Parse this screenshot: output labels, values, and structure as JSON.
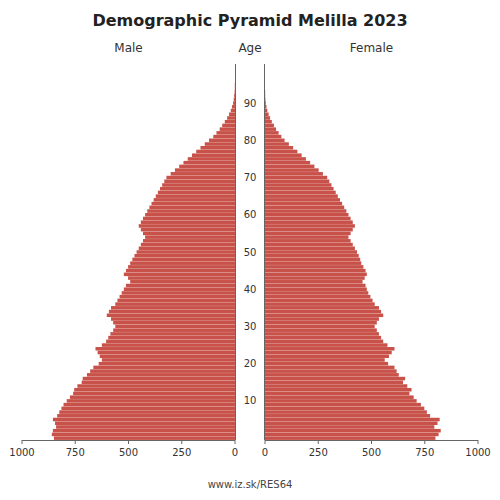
{
  "chart_data": {
    "type": "bar",
    "orientation": "horizontal",
    "title": "Demographic Pyramid Melilla 2023",
    "y_label": "Age",
    "footer": "www.iz.sk/RES64",
    "xlim": [
      0,
      1000
    ],
    "xticks": [
      0,
      250,
      500,
      750,
      1000
    ],
    "categories": [
      null,
      null,
      null,
      null,
      null,
      null,
      null,
      null,
      null,
      null,
      "10",
      null,
      null,
      null,
      null,
      null,
      null,
      null,
      null,
      null,
      "20",
      null,
      null,
      null,
      null,
      null,
      null,
      null,
      null,
      null,
      "30",
      null,
      null,
      null,
      null,
      null,
      null,
      null,
      null,
      null,
      "40",
      null,
      null,
      null,
      null,
      null,
      null,
      null,
      null,
      null,
      "50",
      null,
      null,
      null,
      null,
      null,
      null,
      null,
      null,
      null,
      "60",
      null,
      null,
      null,
      null,
      null,
      null,
      null,
      null,
      null,
      "70",
      null,
      null,
      null,
      null,
      null,
      null,
      null,
      null,
      null,
      "80",
      null,
      null,
      null,
      null,
      null,
      null,
      null,
      null,
      null,
      "90",
      null,
      null,
      null,
      null,
      null,
      null,
      null,
      null,
      null,
      null
    ],
    "series": [
      {
        "name": "Male",
        "color": "#C8524A",
        "values": [
          850,
          860,
          855,
          840,
          845,
          855,
          835,
          825,
          815,
          805,
          790,
          775,
          760,
          755,
          740,
          720,
          715,
          695,
          680,
          665,
          640,
          625,
          635,
          645,
          655,
          625,
          605,
          595,
          585,
          572,
          562,
          572,
          582,
          602,
          592,
          582,
          562,
          552,
          542,
          532,
          522,
          512,
          492,
          502,
          522,
          512,
          502,
          492,
          482,
          472,
          462,
          452,
          442,
          432,
          422,
          432,
          442,
          452,
          442,
          432,
          422,
          412,
          402,
          392,
          382,
          372,
          362,
          352,
          342,
          332,
          322,
          302,
          282,
          262,
          242,
          222,
          202,
          182,
          162,
          142,
          122,
          102,
          87,
          72,
          60,
          48,
          37,
          28,
          20,
          14,
          9,
          6,
          4,
          2,
          1,
          1,
          0,
          0,
          0,
          0,
          0
        ]
      },
      {
        "name": "Female",
        "color": "#C8524A",
        "values": [
          800,
          815,
          825,
          795,
          810,
          820,
          775,
          760,
          748,
          732,
          712,
          698,
          678,
          688,
          668,
          648,
          658,
          628,
          618,
          608,
          578,
          562,
          582,
          595,
          608,
          575,
          555,
          545,
          535,
          525,
          515,
          525,
          535,
          555,
          545,
          535,
          515,
          505,
          495,
          485,
          478,
          472,
          458,
          468,
          478,
          472,
          462,
          452,
          447,
          440,
          432,
          422,
          412,
          402,
          392,
          402,
          412,
          422,
          412,
          402,
          392,
          382,
          372,
          362,
          352,
          342,
          332,
          322,
          312,
          302,
          292,
          272,
          252,
          232,
          212,
          192,
          172,
          152,
          132,
          112,
          92,
          77,
          64,
          52,
          42,
          32,
          24,
          17,
          11,
          7,
          4,
          2,
          1,
          1,
          0,
          0,
          0,
          0,
          0,
          0,
          0
        ]
      }
    ]
  }
}
